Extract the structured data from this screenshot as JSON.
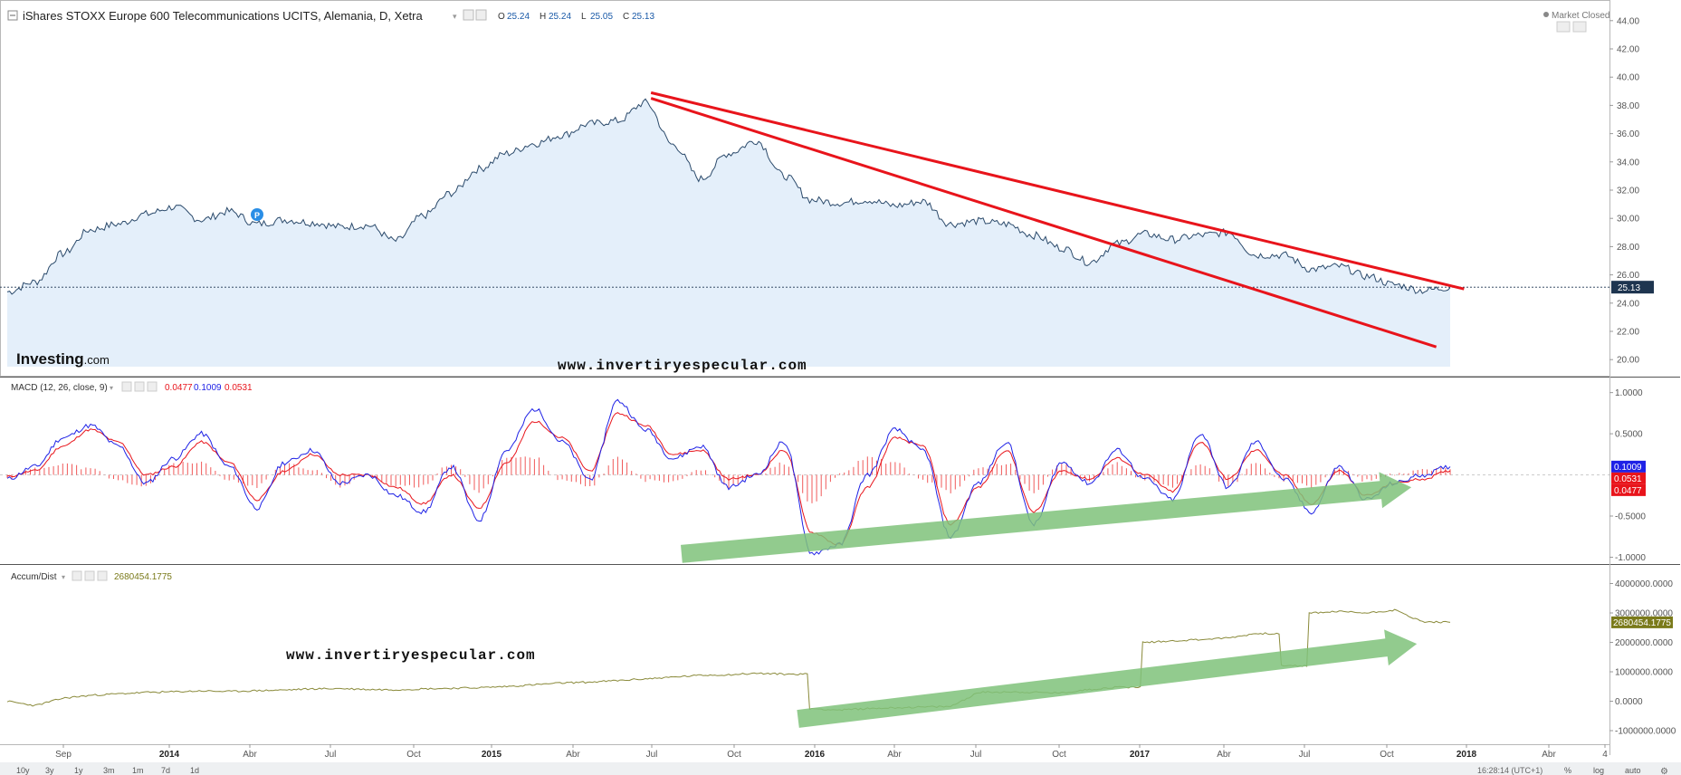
{
  "header": {
    "title": "iShares STOXX Europe 600 Telecommunications UCITS, Alemania, D, Xetra",
    "ohlc": [
      {
        "k": "O",
        "v": "25.24"
      },
      {
        "k": "H",
        "v": "25.24"
      },
      {
        "k": "L",
        "v": "25.05"
      },
      {
        "k": "C",
        "v": "25.13"
      }
    ],
    "market_status": "Market Closed"
  },
  "brand": {
    "bold": "Investing",
    "suffix": ".com"
  },
  "watermark": "www.invertiryespecular.com",
  "colors": {
    "price_line": "#2b4a6b",
    "price_fill": "#dbeaf8",
    "trendline": "#e8141b",
    "macd": "#1f22e6",
    "signal": "#e8141b",
    "histogram": "#f05a5a",
    "ad_line": "#8a8a3a",
    "arrow": "#7fc27a",
    "tag_bg": "#1e3550",
    "ad_tag_bg": "#7a7a1a"
  },
  "macd_header": {
    "name": "MACD (12, 26, close, 9)",
    "v1": "0.0477",
    "v2": "0.1009",
    "v3": "0.0531"
  },
  "ad_header": {
    "name": "Accum/Dist",
    "value": "2680454.1775"
  },
  "time_axis": {
    "labels": [
      "Sep",
      "2014",
      "Abr",
      "Jul",
      "Oct",
      "2015",
      "Abr",
      "Jul",
      "Oct",
      "2016",
      "Abr",
      "Jul",
      "Oct",
      "2017",
      "Abr",
      "Jul",
      "Oct",
      "2018",
      "Abr",
      "4"
    ],
    "ranges": [
      "10y",
      "3y",
      "1y",
      "3m",
      "1m",
      "7d",
      "1d"
    ],
    "clock": "16:28:14 (UTC+1)",
    "right_controls": [
      "%",
      "log",
      "auto"
    ]
  },
  "price_tag": "25.13",
  "macd_tags": [
    "0.1009",
    "0.0531",
    "0.0477"
  ],
  "ad_tag": "2680454.1775",
  "chart_data": [
    {
      "type": "area",
      "title": "iShares STOXX Europe 600 Telecommunications UCITS, Alemania, D, Xetra",
      "ylim": [
        19.5,
        44.5
      ],
      "yticks": [
        "44.00",
        "42.00",
        "40.00",
        "38.00",
        "36.00",
        "34.00",
        "32.00",
        "30.00",
        "28.00",
        "26.00",
        "24.00",
        "22.00",
        "20.00"
      ],
      "x": [
        "2013-08",
        "2013-09",
        "2013-10",
        "2013-11",
        "2013-12",
        "2014-01",
        "2014-02",
        "2014-03",
        "2014-04",
        "2014-05",
        "2014-06",
        "2014-07",
        "2014-08",
        "2014-09",
        "2014-10",
        "2014-11",
        "2014-12",
        "2015-01",
        "2015-02",
        "2015-03",
        "2015-04",
        "2015-05",
        "2015-06",
        "2015-07",
        "2015-08",
        "2015-09",
        "2015-10",
        "2015-11",
        "2015-12",
        "2016-01",
        "2016-02",
        "2016-03",
        "2016-04",
        "2016-05",
        "2016-06",
        "2016-07",
        "2016-08",
        "2016-09",
        "2016-10",
        "2016-11",
        "2016-12",
        "2017-01",
        "2017-02",
        "2017-03",
        "2017-04",
        "2017-05",
        "2017-06",
        "2017-07",
        "2017-08",
        "2017-09",
        "2017-10",
        "2017-11",
        "2017-12"
      ],
      "series": [
        {
          "values": [
            24.8,
            25.5,
            27.5,
            29.2,
            29.6,
            30.3,
            30.8,
            29.9,
            30.5,
            29.6,
            29.9,
            29.7,
            29.4,
            29.5,
            28.4,
            30.2,
            31.8,
            33.5,
            34.6,
            35.3,
            35.9,
            36.7,
            36.9,
            38.2,
            35.2,
            32.8,
            34.6,
            35.5,
            33.0,
            31.3,
            31.1,
            31.3,
            30.9,
            31.2,
            29.6,
            29.8,
            29.6,
            28.8,
            27.9,
            26.9,
            28.2,
            28.9,
            28.5,
            28.8,
            29.0,
            27.4,
            27.4,
            26.4,
            26.6,
            25.9,
            25.3,
            24.9,
            25.1
          ]
        }
      ],
      "last_value": 25.13,
      "trendlines": [
        {
          "from": [
            "2015-07",
            38.9
          ],
          "to": [
            "2017-12",
            25.0
          ]
        },
        {
          "from": [
            "2015-07",
            38.5
          ],
          "to": [
            "2017-11",
            20.9
          ]
        }
      ]
    },
    {
      "type": "line",
      "title": "MACD (12, 26, close, 9)",
      "ylim": [
        -1.05,
        1.15
      ],
      "yticks": [
        "1.0000",
        "0.5000",
        "-0.5000",
        "-1.0000"
      ],
      "series": [
        {
          "values": [
            -0.05,
            0.1,
            0.45,
            0.6,
            0.35,
            -0.1,
            0.2,
            0.5,
            0.1,
            -0.4,
            0.15,
            0.3,
            -0.1,
            0.0,
            -0.25,
            -0.45,
            0.1,
            -0.55,
            0.3,
            0.8,
            0.4,
            -0.05,
            0.9,
            0.55,
            0.2,
            0.35,
            -0.15,
            0.0,
            0.4,
            -0.95,
            -0.85,
            0.0,
            0.55,
            0.3,
            -0.75,
            -0.1,
            0.4,
            -0.6,
            0.15,
            -0.1,
            0.3,
            -0.05,
            -0.3,
            0.5,
            -0.15,
            0.4,
            -0.05,
            -0.45,
            0.1,
            -0.3,
            -0.1,
            0.0,
            0.1
          ]
        },
        {
          "values": [
            -0.02,
            0.05,
            0.35,
            0.55,
            0.4,
            0.0,
            0.1,
            0.4,
            0.15,
            -0.3,
            0.05,
            0.25,
            0.0,
            0.0,
            -0.15,
            -0.35,
            0.0,
            -0.4,
            0.15,
            0.65,
            0.45,
            0.05,
            0.75,
            0.6,
            0.25,
            0.3,
            -0.05,
            0.0,
            0.3,
            -0.7,
            -0.85,
            -0.15,
            0.45,
            0.35,
            -0.6,
            -0.15,
            0.3,
            -0.45,
            0.05,
            -0.05,
            0.2,
            0.0,
            -0.2,
            0.4,
            -0.05,
            0.3,
            0.0,
            -0.35,
            0.05,
            -0.25,
            -0.1,
            -0.05,
            0.05
          ]
        }
      ],
      "histogram": "macd minus signal",
      "arrow": {
        "from": [
          "2015-08",
          -0.96
        ],
        "to": [
          "2017-10",
          -0.15
        ]
      }
    },
    {
      "type": "line",
      "title": "Accum/Dist",
      "ylim": [
        -1400000,
        4600000
      ],
      "yticks": [
        "4000000.0000",
        "3000000.0000",
        "2000000.0000",
        "1000000.0000",
        "0.0000",
        "-1000000.0000"
      ],
      "series": [
        {
          "values": [
            0,
            -150000,
            100000,
            200000,
            250000,
            300000,
            320000,
            350000,
            330000,
            360000,
            380000,
            420000,
            430000,
            400000,
            390000,
            420000,
            440000,
            460000,
            500000,
            560000,
            620000,
            650000,
            700000,
            760000,
            820000,
            880000,
            900000,
            950000,
            920000,
            -250000,
            -300000,
            -250000,
            -220000,
            -200000,
            -180000,
            300000,
            320000,
            300000,
            280000,
            400000,
            480000,
            2000000,
            2050000,
            2100000,
            2150000,
            2300000,
            1200000,
            3000000,
            3050000,
            3000000,
            3100000,
            2700000,
            2680454
          ]
        }
      ],
      "last_value": 2680454.1775,
      "arrow": {
        "from": [
          "2015-12",
          -600000
        ],
        "to": [
          "2017-10",
          1950000
        ]
      }
    }
  ]
}
